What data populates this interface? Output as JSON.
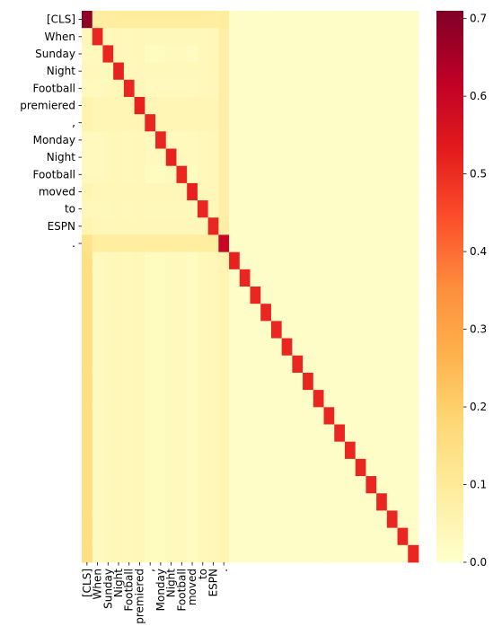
{
  "chart_data": {
    "type": "heatmap",
    "title": "",
    "xlabel": "",
    "ylabel": "",
    "row_labels": [
      "[CLS]",
      "When",
      "Sunday",
      "Night",
      "Football",
      "premiered",
      ",",
      "Monday",
      "Night",
      "Football",
      "moved",
      "to",
      "ESPN",
      "."
    ],
    "col_labels": [
      "[CLS]",
      "When",
      "Sunday",
      "Night",
      "Football",
      "premiered",
      ",",
      "Monday",
      "Night",
      "Football",
      "moved",
      "to",
      "ESPN",
      "."
    ],
    "n_rows": 32,
    "n_cols": 32,
    "diagonal_values": [
      0.69,
      0.51,
      0.51,
      0.52,
      0.51,
      0.52,
      0.51,
      0.51,
      0.52,
      0.51,
      0.52,
      0.51,
      0.51,
      0.6,
      0.52,
      0.51,
      0.51,
      0.51,
      0.51,
      0.51,
      0.51,
      0.51,
      0.51,
      0.51,
      0.51,
      0.51,
      0.51,
      0.51,
      0.51,
      0.51,
      0.51,
      0.51
    ],
    "label_row_shades": [
      0.13,
      0.04,
      0.02,
      0.04,
      0.03,
      0.06,
      0.06,
      0.03,
      0.03,
      0.02,
      0.05,
      0.04,
      0.05,
      0.13
    ],
    "label_col_shades": [
      0.03,
      0.03,
      0.04,
      0.05,
      0.04,
      0.05,
      0.02,
      0.02,
      0.03,
      0.03,
      0.02,
      0.04,
      0.05,
      0.07
    ],
    "cls_column_value": 0.15,
    "period_column_value": 0.08,
    "background_value": 0.01,
    "colorbar": {
      "colormap": "YlOrRd",
      "vmin": 0.0,
      "vmax": 0.71,
      "ticks": [
        0.0,
        0.1,
        0.2,
        0.3,
        0.4,
        0.5,
        0.6,
        0.7
      ],
      "tick_labels": [
        "0.0",
        "0.1",
        "0.2",
        "0.3",
        "0.4",
        "0.5",
        "0.6",
        "0.7"
      ]
    }
  }
}
